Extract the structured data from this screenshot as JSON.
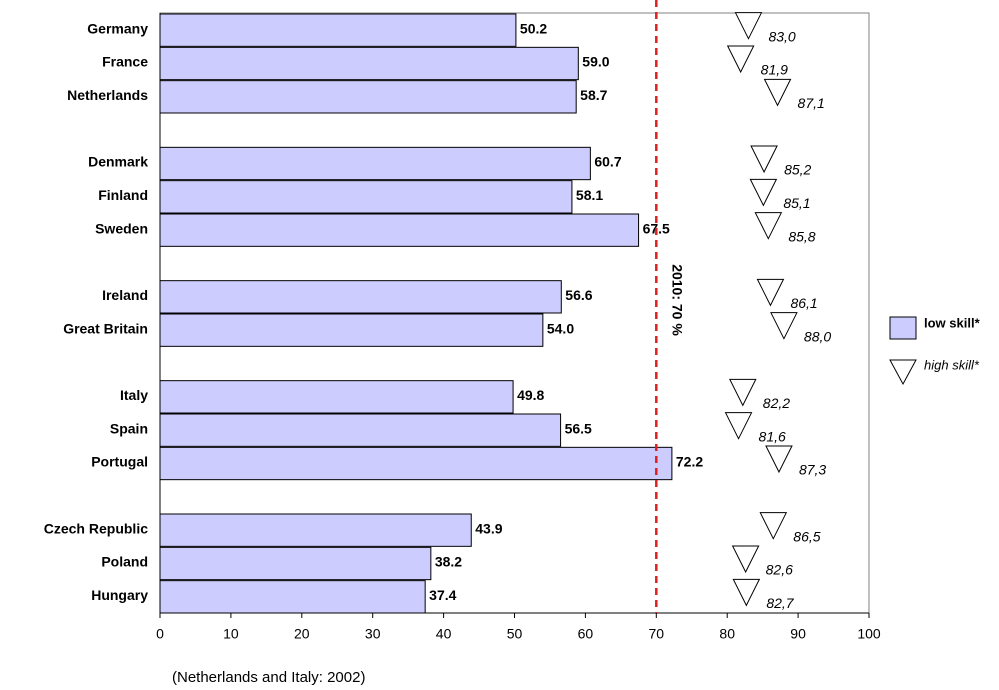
{
  "chart_data": {
    "type": "bar",
    "orientation": "horizontal",
    "note": "(Netherlands and Italy: 2002)",
    "categories": [
      "Germany",
      "France",
      "Netherlands",
      null,
      "Denmark",
      "Finland",
      "Sweden",
      null,
      "Ireland",
      "Great Britain",
      null,
      "Italy",
      "Spain",
      "Portugal",
      null,
      "Czech Republic",
      "Poland",
      "Hungary"
    ],
    "series": [
      {
        "name": "low skill*",
        "color": "#ccccff",
        "values": [
          50.2,
          59.0,
          58.7,
          null,
          60.7,
          58.1,
          67.5,
          null,
          56.6,
          54.0,
          null,
          49.8,
          56.5,
          72.2,
          null,
          43.9,
          38.2,
          37.4
        ],
        "value_labels": [
          "50.2",
          "59.0",
          "58.7",
          null,
          "60.7",
          "58.1",
          "67.5",
          null,
          "56.6",
          "54.0",
          null,
          "49.8",
          "56.5",
          "72.2",
          null,
          "43.9",
          "38.2",
          "37.4"
        ]
      },
      {
        "name": "high skill*",
        "color": "#ffffff",
        "marker": "triangle-down",
        "values": [
          83.0,
          81.9,
          87.1,
          null,
          85.2,
          85.1,
          85.8,
          null,
          86.1,
          88.0,
          null,
          82.2,
          81.6,
          87.3,
          null,
          86.5,
          82.6,
          82.7
        ],
        "value_labels": [
          "83,0",
          "81,9",
          "87,1",
          null,
          "85,2",
          "85,1",
          "85,8",
          null,
          "86,1",
          "88,0",
          null,
          "82,2",
          "81,6",
          "87,3",
          null,
          "86,5",
          "82,6",
          "82,7"
        ]
      }
    ],
    "reference_line": {
      "value": 70,
      "label": "2010: 70 %",
      "color": "#e02020"
    },
    "xlim": [
      0,
      100
    ],
    "xticks": [
      0,
      10,
      20,
      30,
      40,
      50,
      60,
      70,
      80,
      90,
      100
    ],
    "legend": "right"
  }
}
